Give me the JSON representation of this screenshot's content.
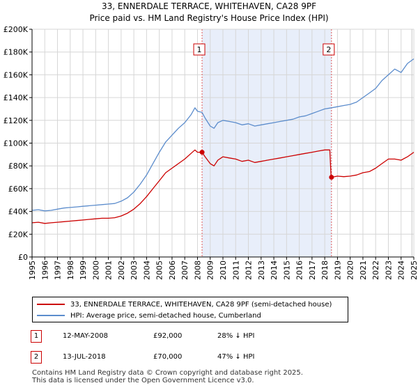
{
  "title": "33, ENNERDALE TERRACE, WHITEHAVEN, CA28 9PF",
  "subtitle": "Price paid vs. HM Land Registry's House Price Index (HPI)",
  "chart_data": {
    "type": "line",
    "xlim": [
      1995,
      2025
    ],
    "ylim": [
      0,
      200000
    ],
    "y_ticks": [
      0,
      20000,
      40000,
      60000,
      80000,
      100000,
      120000,
      140000,
      160000,
      180000,
      200000
    ],
    "y_tick_labels": [
      "£0",
      "£20K",
      "£40K",
      "£60K",
      "£80K",
      "£100K",
      "£120K",
      "£140K",
      "£160K",
      "£180K",
      "£200K"
    ],
    "x_ticks": [
      1995,
      1996,
      1997,
      1998,
      1999,
      2000,
      2001,
      2002,
      2003,
      2004,
      2005,
      2006,
      2007,
      2008,
      2009,
      2010,
      2011,
      2012,
      2013,
      2014,
      2015,
      2016,
      2017,
      2018,
      2019,
      2020,
      2021,
      2022,
      2023,
      2024,
      2025
    ],
    "x_tick_labels": [
      "1995",
      "1996",
      "1997",
      "1998",
      "1999",
      "2000",
      "2001",
      "2002",
      "2003",
      "2004",
      "2005",
      "2006",
      "2007",
      "2008",
      "2009",
      "2010",
      "2011",
      "2012",
      "2013",
      "2014",
      "2015",
      "2016",
      "2017",
      "2018",
      "2019",
      "2020",
      "2021",
      "2022",
      "2023",
      "2024",
      "2025"
    ],
    "shaded_region": [
      2008.36,
      2018.53
    ],
    "series": [
      {
        "name": "33, ENNERDALE TERRACE, WHITEHAVEN, CA28 9PF (semi-detached house)",
        "color": "#cc0000",
        "points": [
          [
            1995.0,
            30000
          ],
          [
            1995.5,
            30500
          ],
          [
            1996.0,
            29500
          ],
          [
            1996.5,
            30000
          ],
          [
            1997.0,
            30500
          ],
          [
            1997.5,
            31000
          ],
          [
            1998.0,
            31500
          ],
          [
            1998.5,
            32000
          ],
          [
            1999.0,
            32500
          ],
          [
            1999.5,
            33000
          ],
          [
            2000.0,
            33500
          ],
          [
            2000.5,
            34000
          ],
          [
            2001.0,
            34000
          ],
          [
            2001.5,
            34500
          ],
          [
            2002.0,
            36000
          ],
          [
            2002.5,
            38500
          ],
          [
            2003.0,
            42000
          ],
          [
            2003.5,
            47000
          ],
          [
            2004.0,
            53000
          ],
          [
            2004.5,
            60000
          ],
          [
            2005.0,
            67000
          ],
          [
            2005.5,
            74000
          ],
          [
            2006.0,
            78000
          ],
          [
            2006.5,
            82000
          ],
          [
            2007.0,
            86000
          ],
          [
            2007.5,
            91000
          ],
          [
            2007.8,
            94000
          ],
          [
            2008.0,
            92000
          ],
          [
            2008.36,
            92000
          ],
          [
            2008.6,
            88000
          ],
          [
            2009.0,
            82000
          ],
          [
            2009.3,
            80000
          ],
          [
            2009.6,
            85000
          ],
          [
            2010.0,
            88000
          ],
          [
            2010.5,
            87000
          ],
          [
            2011.0,
            86000
          ],
          [
            2011.5,
            84000
          ],
          [
            2012.0,
            85000
          ],
          [
            2012.5,
            83000
          ],
          [
            2013.0,
            84000
          ],
          [
            2013.5,
            85000
          ],
          [
            2014.0,
            86000
          ],
          [
            2014.5,
            87000
          ],
          [
            2015.0,
            88000
          ],
          [
            2015.5,
            89000
          ],
          [
            2016.0,
            90000
          ],
          [
            2016.5,
            91000
          ],
          [
            2017.0,
            92000
          ],
          [
            2017.5,
            93000
          ],
          [
            2018.0,
            94000
          ],
          [
            2018.4,
            94000
          ],
          [
            2018.5,
            70000
          ],
          [
            2018.53,
            70000
          ],
          [
            2019.0,
            71000
          ],
          [
            2019.5,
            70500
          ],
          [
            2020.0,
            71000
          ],
          [
            2020.5,
            72000
          ],
          [
            2021.0,
            74000
          ],
          [
            2021.5,
            75000
          ],
          [
            2022.0,
            78000
          ],
          [
            2022.5,
            82000
          ],
          [
            2023.0,
            86000
          ],
          [
            2023.5,
            86000
          ],
          [
            2024.0,
            85000
          ],
          [
            2024.5,
            88000
          ],
          [
            2025.0,
            92000
          ]
        ]
      },
      {
        "name": "HPI: Average price, semi-detached house, Cumberland",
        "color": "#5b8ccc",
        "points": [
          [
            1995.0,
            41000
          ],
          [
            1995.5,
            41500
          ],
          [
            1996.0,
            40500
          ],
          [
            1996.5,
            41000
          ],
          [
            1997.0,
            42000
          ],
          [
            1997.5,
            43000
          ],
          [
            1998.0,
            43500
          ],
          [
            1998.5,
            44000
          ],
          [
            1999.0,
            44500
          ],
          [
            1999.5,
            45000
          ],
          [
            2000.0,
            45500
          ],
          [
            2000.5,
            46000
          ],
          [
            2001.0,
            46500
          ],
          [
            2001.5,
            47000
          ],
          [
            2002.0,
            49000
          ],
          [
            2002.5,
            52000
          ],
          [
            2003.0,
            57000
          ],
          [
            2003.5,
            64000
          ],
          [
            2004.0,
            72000
          ],
          [
            2004.5,
            82000
          ],
          [
            2005.0,
            92000
          ],
          [
            2005.5,
            101000
          ],
          [
            2006.0,
            107000
          ],
          [
            2006.5,
            113000
          ],
          [
            2007.0,
            118000
          ],
          [
            2007.5,
            125000
          ],
          [
            2007.8,
            131000
          ],
          [
            2008.0,
            128000
          ],
          [
            2008.36,
            127000
          ],
          [
            2008.6,
            122000
          ],
          [
            2009.0,
            115000
          ],
          [
            2009.3,
            113000
          ],
          [
            2009.6,
            118000
          ],
          [
            2010.0,
            120000
          ],
          [
            2010.5,
            119000
          ],
          [
            2011.0,
            118000
          ],
          [
            2011.5,
            116000
          ],
          [
            2012.0,
            117000
          ],
          [
            2012.5,
            115000
          ],
          [
            2013.0,
            116000
          ],
          [
            2013.5,
            117000
          ],
          [
            2014.0,
            118000
          ],
          [
            2014.5,
            119000
          ],
          [
            2015.0,
            120000
          ],
          [
            2015.5,
            121000
          ],
          [
            2016.0,
            123000
          ],
          [
            2016.5,
            124000
          ],
          [
            2017.0,
            126000
          ],
          [
            2017.5,
            128000
          ],
          [
            2018.0,
            130000
          ],
          [
            2018.53,
            131000
          ],
          [
            2019.0,
            132000
          ],
          [
            2019.5,
            133000
          ],
          [
            2020.0,
            134000
          ],
          [
            2020.5,
            136000
          ],
          [
            2021.0,
            140000
          ],
          [
            2021.5,
            144000
          ],
          [
            2022.0,
            148000
          ],
          [
            2022.5,
            155000
          ],
          [
            2023.0,
            160000
          ],
          [
            2023.5,
            165000
          ],
          [
            2024.0,
            162000
          ],
          [
            2024.5,
            170000
          ],
          [
            2025.0,
            174000
          ]
        ]
      }
    ],
    "markers": [
      {
        "label": "1",
        "x": 2008.36,
        "y": 92000
      },
      {
        "label": "2",
        "x": 2018.53,
        "y": 70000
      }
    ]
  },
  "legend": {
    "entries": [
      {
        "label": "33, ENNERDALE TERRACE, WHITEHAVEN, CA28 9PF (semi-detached house)",
        "color": "#cc0000"
      },
      {
        "label": "HPI: Average price, semi-detached house, Cumberland",
        "color": "#5b8ccc"
      }
    ]
  },
  "annotations": [
    {
      "num": "1",
      "date": "12-MAY-2008",
      "price": "£92,000",
      "hpi": "28% ↓ HPI"
    },
    {
      "num": "2",
      "date": "13-JUL-2018",
      "price": "£70,000",
      "hpi": "47% ↓ HPI"
    }
  ],
  "footer": {
    "line1": "Contains HM Land Registry data © Crown copyright and database right 2025.",
    "line2": "This data is licensed under the Open Government Licence v3.0."
  }
}
